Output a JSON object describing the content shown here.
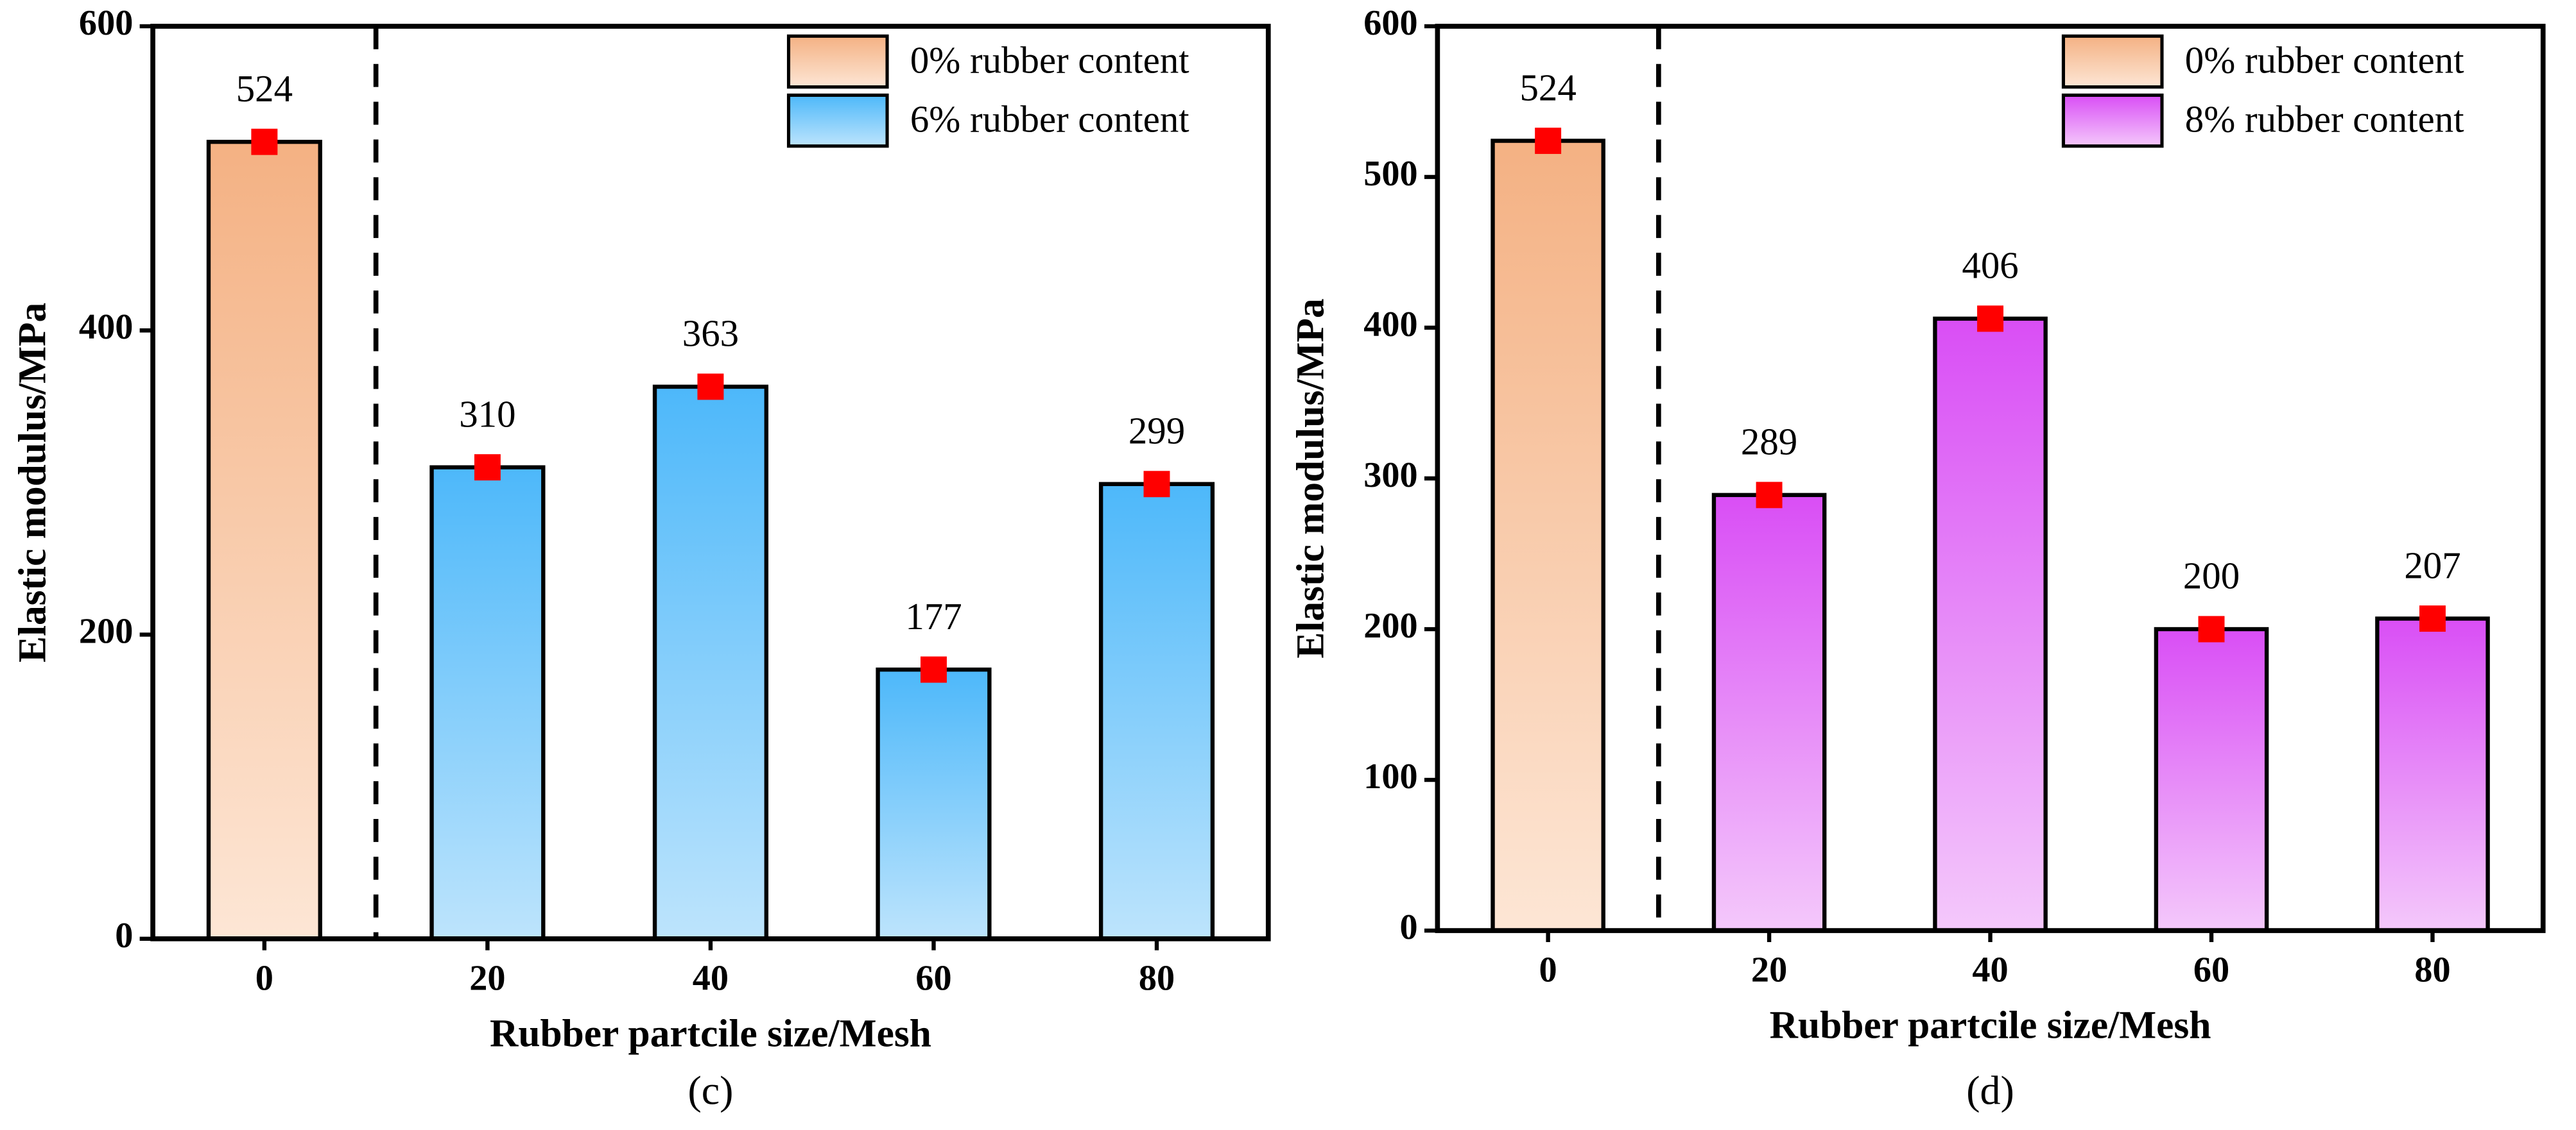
{
  "chart_data": [
    {
      "type": "bar",
      "caption": "(c)",
      "x_label": "Rubber partcile size/Mesh",
      "y_label": "Elastic modulus/MPa",
      "categories": [
        "0",
        "20",
        "40",
        "60",
        "80"
      ],
      "ylim": [
        0,
        600
      ],
      "yticks": [
        0,
        200,
        400,
        600
      ],
      "marker_color": "#ff0000",
      "legend": "upper right",
      "series": [
        {
          "name": "0% rubber content",
          "color": "#f4b183",
          "gradient": [
            "#f4b183",
            "#fde6d5"
          ],
          "values": [
            524,
            null,
            null,
            null,
            null
          ]
        },
        {
          "name": "6% rubber content",
          "color": "#4db8fa",
          "gradient": [
            "#4db8fa",
            "#bde4fc"
          ],
          "values": [
            null,
            310,
            363,
            177,
            299
          ]
        }
      ]
    },
    {
      "type": "bar",
      "caption": "(d)",
      "x_label": "Rubber partcile size/Mesh",
      "y_label": "Elastic modulus/MPa",
      "categories": [
        "0",
        "20",
        "40",
        "60",
        "80"
      ],
      "ylim": [
        0,
        600
      ],
      "yticks": [
        0,
        100,
        200,
        300,
        400,
        500,
        600
      ],
      "marker_color": "#ff0000",
      "legend": "upper right",
      "series": [
        {
          "name": "0% rubber content",
          "color": "#f4b183",
          "gradient": [
            "#f4b183",
            "#fde6d5"
          ],
          "values": [
            524,
            null,
            null,
            null,
            null
          ]
        },
        {
          "name": "8% rubber content",
          "color": "#d94ef5",
          "gradient": [
            "#d94ef5",
            "#f4c8fb"
          ],
          "values": [
            null,
            289,
            406,
            200,
            207
          ]
        }
      ]
    }
  ]
}
